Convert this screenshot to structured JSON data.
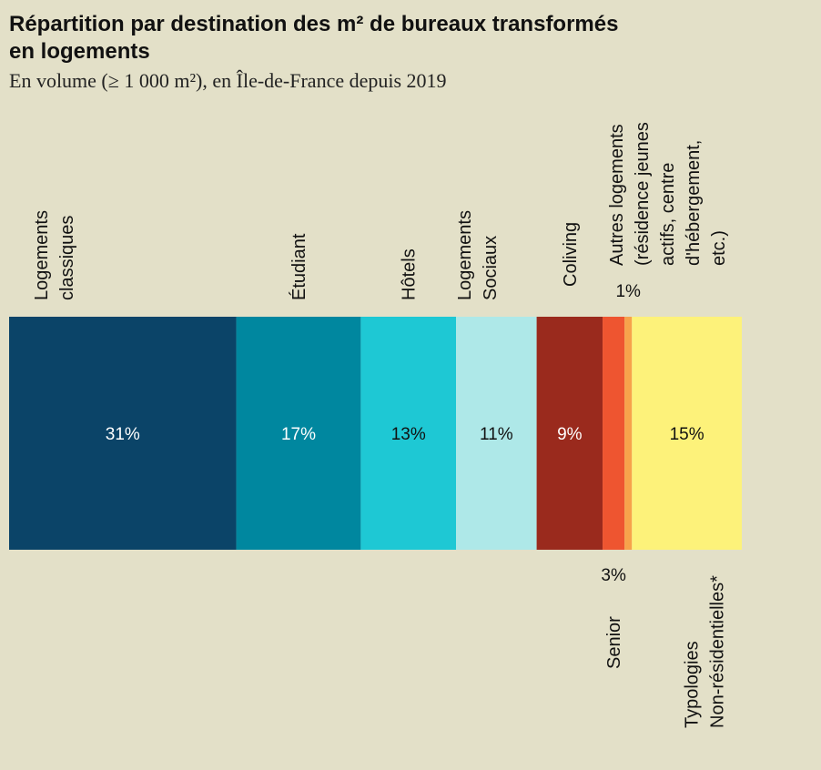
{
  "chart_data": {
    "type": "stacked-bar",
    "title": [
      "Répartition par destination des m² de bureaux transformés",
      "en logements"
    ],
    "subtitle": "En volume (≥ 1 000 m²), en Île-de-France depuis 2019",
    "categories": [
      [
        "Logements",
        "classiques"
      ],
      [
        "Étudiant"
      ],
      [
        "Hôtels"
      ],
      [
        "Logements",
        "Sociaux"
      ],
      [
        "Coliving"
      ],
      [
        "Senior"
      ],
      [
        "Autres logements",
        "(résidence jeunes",
        "actifs, centre",
        "d'hébergement,",
        "etc.)"
      ],
      [
        "Typologies",
        "Non-résidentielles*"
      ]
    ],
    "values": [
      31,
      17,
      13,
      11,
      9,
      3,
      1,
      15
    ],
    "value_labels": [
      "31%",
      "17%",
      "13%",
      "11%",
      "9%",
      "3%",
      "1%",
      "15%"
    ],
    "colors": [
      "#0b4468",
      "#00879f",
      "#1ec8d4",
      "#aee8e8",
      "#9a2a1d",
      "#ee5530",
      "#f7a24b",
      "#fdf27a"
    ],
    "xlim": [
      0,
      100
    ]
  }
}
